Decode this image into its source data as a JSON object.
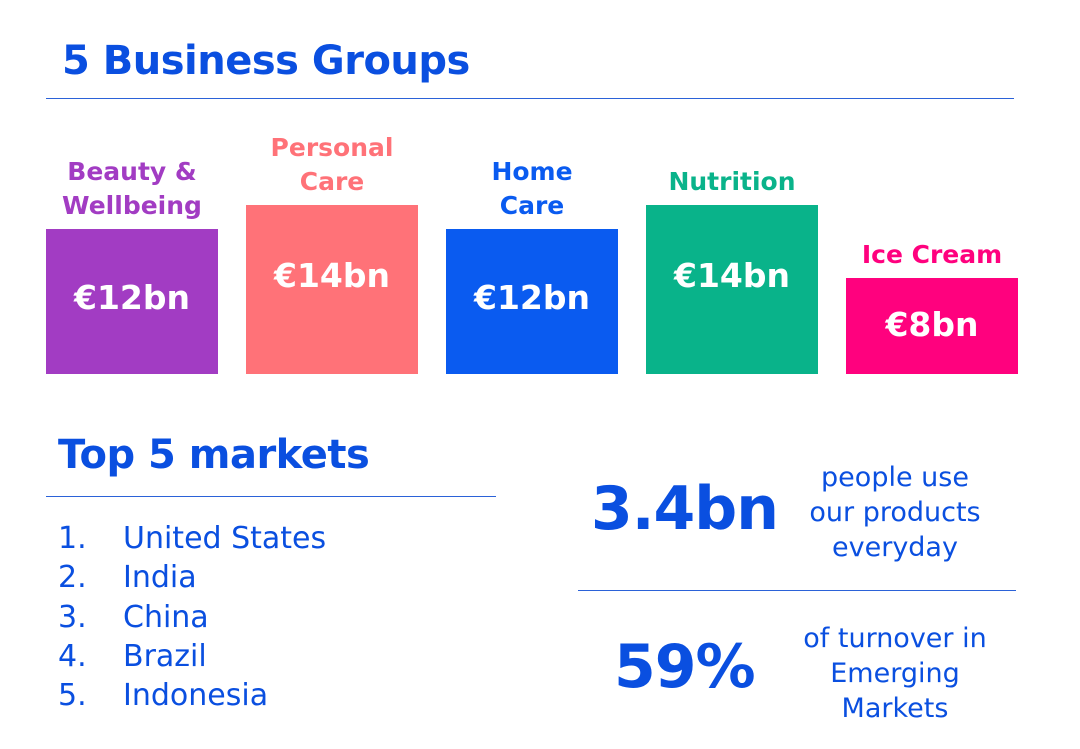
{
  "heading_groups": "5 Business Groups",
  "heading_markets": "Top 5 markets",
  "chart_data": {
    "type": "bar",
    "title": "5 Business Groups",
    "categories": [
      "Beauty & Wellbeing",
      "Personal Care",
      "Home Care",
      "Nutrition",
      "Ice Cream"
    ],
    "values": [
      12,
      14,
      12,
      14,
      8
    ],
    "value_labels": [
      "€12bn",
      "€14bn",
      "€12bn",
      "€14bn",
      "€8bn"
    ],
    "label_lines": [
      [
        "Beauty &",
        "Wellbeing"
      ],
      [
        "Personal",
        "Care"
      ],
      [
        "Home",
        "Care"
      ],
      [
        "Nutrition"
      ],
      [
        "Ice Cream"
      ]
    ],
    "unit": "€bn",
    "colors": [
      "#a23cc3",
      "#ff7278",
      "#0a5bf0",
      "#09b38a",
      "#ff017e"
    ],
    "ylim": [
      0,
      14
    ],
    "grid": false,
    "legend": "none"
  },
  "markets": [
    {
      "num": "1.",
      "name": "United States"
    },
    {
      "num": "2.",
      "name": "India"
    },
    {
      "num": "3.",
      "name": "China"
    },
    {
      "num": "4.",
      "name": "Brazil"
    },
    {
      "num": "5.",
      "name": "Indonesia"
    }
  ],
  "stats": [
    {
      "value": "3.4bn",
      "lines": [
        "people use",
        "our products",
        "everyday"
      ]
    },
    {
      "value": "59%",
      "lines": [
        "of turnover in",
        "Emerging",
        "Markets"
      ]
    }
  ],
  "colors": {
    "brand_blue": "#0a4fe0",
    "rule": "#2b62d8"
  }
}
